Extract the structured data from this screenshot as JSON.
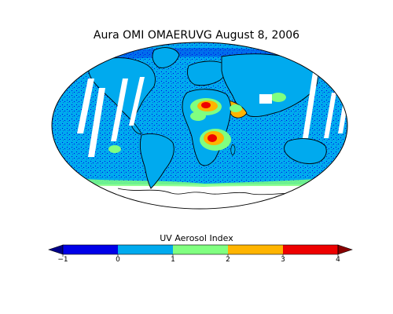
{
  "title": "Aura OMI OMAERUVG August 8, 2006",
  "colorbar": {
    "label": "UV Aerosol Index",
    "ticks": [
      "−1",
      "0",
      "1",
      "2",
      "3",
      "4"
    ],
    "range": [
      -1,
      4
    ],
    "extend": "both",
    "bins": [
      {
        "from": -1,
        "to": 0,
        "color": "#0000e8"
      },
      {
        "from": 0,
        "to": 1,
        "color": "#00aaee"
      },
      {
        "from": 1,
        "to": 2,
        "color": "#80ff80"
      },
      {
        "from": 2,
        "to": 3,
        "color": "#ffb400"
      },
      {
        "from": 3,
        "to": 4,
        "color": "#ee0000"
      }
    ],
    "under_color": "#000088",
    "over_color": "#880000"
  },
  "map": {
    "projection": "mollweide",
    "ocean_background": "#00aaee",
    "missing_data_color": "#ffffff",
    "coastline_color": "#000000"
  }
}
